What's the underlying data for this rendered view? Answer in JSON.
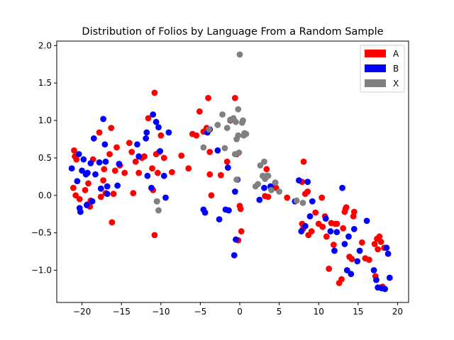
{
  "chart_data": {
    "type": "scatter",
    "title": "Distribution of Folios by Language From a Random Sample",
    "xlabel": "",
    "ylabel": "",
    "xlim": [
      -23.2,
      21.4
    ],
    "ylim": [
      -1.43,
      2.06
    ],
    "xticks": [
      -20,
      -15,
      -10,
      -5,
      0,
      5,
      10,
      15,
      20
    ],
    "xtick_labels": [
      "−20",
      "−15",
      "−10",
      "−5",
      "0",
      "5",
      "10",
      "15",
      "20"
    ],
    "yticks": [
      -1.0,
      -0.5,
      0.0,
      0.5,
      1.0,
      1.5,
      2.0
    ],
    "ytick_labels": [
      "−1.0",
      "−0.5",
      "0.0",
      "0.5",
      "1.0",
      "1.5",
      "2.0"
    ],
    "grid": false,
    "legend": {
      "position": "top-right",
      "entries": [
        "A",
        "B",
        "X"
      ]
    },
    "series": [
      {
        "name": "A",
        "color": "#ff0000",
        "points": [
          [
            -21,
            0.6
          ],
          [
            -20.9,
            0.52
          ],
          [
            -21.1,
            0.1
          ],
          [
            -20.8,
            0.0
          ],
          [
            -20.3,
            -0.05
          ],
          [
            -19.6,
            0.07
          ],
          [
            -19.3,
            -0.12
          ],
          [
            -19.0,
            -0.15
          ],
          [
            -19.2,
            0.16
          ],
          [
            -18.6,
            0.48
          ],
          [
            -18.9,
            -0.07
          ],
          [
            -17.8,
            0.84
          ],
          [
            -17.6,
            -0.02
          ],
          [
            -17.3,
            0.2
          ],
          [
            -17.0,
            0.03
          ],
          [
            -16.5,
            0.55
          ],
          [
            -16.3,
            0.9
          ],
          [
            -16.0,
            0.02
          ],
          [
            -15.8,
            0.33
          ],
          [
            -15.6,
            0.64
          ],
          [
            -15.2,
            0.4
          ],
          [
            -14.6,
            0.3
          ],
          [
            -14.0,
            0.7
          ],
          [
            -13.7,
            0.58
          ],
          [
            -13.5,
            0.03
          ],
          [
            -13.2,
            0.45
          ],
          [
            -12.8,
            0.3
          ],
          [
            -12.4,
            0.5
          ],
          [
            -12.1,
            0.52
          ],
          [
            -11.6,
            1.03
          ],
          [
            -11.1,
            0.36
          ],
          [
            -11.0,
            0.07
          ],
          [
            -10.8,
            1.37
          ],
          [
            -10.6,
            0.55
          ],
          [
            -10.4,
            0.3
          ],
          [
            -10.2,
            0.58
          ],
          [
            -10.0,
            0.8
          ],
          [
            -9.6,
            0.5
          ],
          [
            -8.6,
            0.31
          ],
          [
            -7.4,
            0.53
          ],
          [
            -6.5,
            0.36
          ],
          [
            -6.0,
            0.82
          ],
          [
            -5.5,
            0.8
          ],
          [
            -5.1,
            1.12
          ],
          [
            -4.6,
            0.85
          ],
          [
            -4.2,
            0.9
          ],
          [
            -4.0,
            1.3
          ],
          [
            -3.8,
            0.58
          ],
          [
            -3.6,
            0.0
          ],
          [
            -3.8,
            0.28
          ],
          [
            -2.4,
            0.27
          ],
          [
            -1.6,
            0.45
          ],
          [
            -1.2,
            1.0
          ],
          [
            -0.6,
            1.3
          ],
          [
            -0.4,
            0.55
          ],
          [
            -0.2,
            -0.6
          ],
          [
            0.2,
            -0.48
          ],
          [
            0.0,
            -0.14
          ],
          [
            0.1,
            -0.18
          ],
          [
            -10.8,
            -0.53
          ],
          [
            -16.2,
            -0.36
          ],
          [
            -20.7,
            0.48
          ],
          [
            -17.2,
            0.35
          ],
          [
            3.4,
            0.35
          ],
          [
            3.6,
            -0.02
          ],
          [
            3.2,
            -0.01
          ],
          [
            4.6,
            0.1
          ],
          [
            6.0,
            -0.03
          ],
          [
            7.9,
            0.18
          ],
          [
            8.1,
            0.45
          ],
          [
            8.3,
            0.02
          ],
          [
            8.6,
            0.05
          ],
          [
            8.0,
            -0.45
          ],
          [
            7.9,
            -0.38
          ],
          [
            8.7,
            -0.53
          ],
          [
            9.1,
            -0.48
          ],
          [
            9.6,
            -0.23
          ],
          [
            10.0,
            -0.38
          ],
          [
            10.4,
            -0.03
          ],
          [
            10.5,
            -0.42
          ],
          [
            10.8,
            -0.28
          ],
          [
            11.0,
            -0.55
          ],
          [
            11.3,
            -0.98
          ],
          [
            11.6,
            -0.37
          ],
          [
            11.9,
            -0.66
          ],
          [
            12.3,
            -0.38
          ],
          [
            12.6,
            -1.17
          ],
          [
            12.9,
            -1.12
          ],
          [
            13.1,
            -0.44
          ],
          [
            13.3,
            -0.22
          ],
          [
            13.5,
            -0.16
          ],
          [
            13.9,
            -0.82
          ],
          [
            14.2,
            -0.85
          ],
          [
            14.4,
            -0.28
          ],
          [
            14.5,
            -0.22
          ],
          [
            15.5,
            -0.63
          ],
          [
            15.9,
            -0.84
          ],
          [
            16.4,
            -0.86
          ],
          [
            17.1,
            -0.65
          ],
          [
            17.2,
            -1.08
          ],
          [
            17.4,
            -0.58
          ],
          [
            17.5,
            -0.72
          ],
          [
            17.7,
            -0.55
          ],
          [
            17.9,
            -0.62
          ],
          [
            18.1,
            -1.22
          ],
          [
            18.3,
            -0.7
          ],
          [
            17.8,
            -1.23
          ],
          [
            13.4,
            -0.18
          ],
          [
            12.1,
            -0.38
          ]
        ]
      },
      {
        "name": "B",
        "color": "#0000ff",
        "points": [
          [
            -21.3,
            0.36
          ],
          [
            -20.6,
            0.19
          ],
          [
            -20.4,
            0.55
          ],
          [
            -20.2,
            -0.22
          ],
          [
            -20.3,
            -0.17
          ],
          [
            -20.0,
            0.33
          ],
          [
            -19.8,
            0.48
          ],
          [
            -19.5,
            0.28
          ],
          [
            -19.3,
            0.3
          ],
          [
            -18.9,
            0.43
          ],
          [
            -18.5,
            0.76
          ],
          [
            -18.3,
            0.28
          ],
          [
            -17.8,
            0.44
          ],
          [
            -17.6,
            0.09
          ],
          [
            -17.3,
            1.02
          ],
          [
            -17.0,
            0.45
          ],
          [
            -17.1,
            0.68
          ],
          [
            -16.8,
            0.12
          ],
          [
            -15.3,
            0.42
          ],
          [
            -15.5,
            0.13
          ],
          [
            -13.0,
            0.68
          ],
          [
            -12.8,
            0.52
          ],
          [
            -11.9,
            0.76
          ],
          [
            -11.7,
            0.26
          ],
          [
            -11.2,
            0.1
          ],
          [
            -11.0,
            1.08
          ],
          [
            -10.6,
            0.98
          ],
          [
            -10.3,
            0.91
          ],
          [
            -10.1,
            0.59
          ],
          [
            -9.6,
            0.26
          ],
          [
            -9.4,
            -0.03
          ],
          [
            -9.0,
            0.84
          ],
          [
            -10.5,
            -0.08
          ],
          [
            -19.4,
            -0.13
          ],
          [
            -18.7,
            -0.08
          ],
          [
            -11.8,
            0.84
          ],
          [
            -16.8,
            0.02
          ],
          [
            -4.6,
            -0.19
          ],
          [
            -4.4,
            -0.23
          ],
          [
            -3.8,
            0.88
          ],
          [
            -2.6,
            -0.32
          ],
          [
            -1.8,
            -0.19
          ],
          [
            -1.4,
            -0.2
          ],
          [
            -1.5,
            0.37
          ],
          [
            -0.6,
            0.05
          ],
          [
            -0.7,
            -0.8
          ],
          [
            -0.5,
            -0.59
          ],
          [
            -0.3,
            0.21
          ],
          [
            2.5,
            -0.06
          ],
          [
            4.0,
            0.08
          ],
          [
            4.5,
            0.17
          ],
          [
            7.0,
            -0.08
          ],
          [
            7.5,
            0.2
          ],
          [
            7.8,
            -0.48
          ],
          [
            8.3,
            -0.41
          ],
          [
            8.6,
            0.18
          ],
          [
            8.9,
            -0.28
          ],
          [
            9.2,
            -0.08
          ],
          [
            10.9,
            -0.31
          ],
          [
            11.5,
            -0.48
          ],
          [
            12.0,
            -0.74
          ],
          [
            12.3,
            -0.49
          ],
          [
            13.0,
            0.1
          ],
          [
            13.3,
            -0.65
          ],
          [
            13.6,
            -1.0
          ],
          [
            13.8,
            -0.55
          ],
          [
            14.1,
            -1.05
          ],
          [
            14.5,
            -0.45
          ],
          [
            14.9,
            -0.88
          ],
          [
            16.1,
            -0.34
          ],
          [
            17.0,
            -1.0
          ],
          [
            17.3,
            -1.13
          ],
          [
            17.5,
            -1.23
          ],
          [
            18.0,
            -1.24
          ],
          [
            18.4,
            -1.25
          ],
          [
            18.6,
            -0.7
          ],
          [
            18.8,
            -0.78
          ],
          [
            19.0,
            -1.1
          ],
          [
            15.2,
            -0.74
          ],
          [
            -2.8,
            0.6
          ],
          [
            3.1,
            0.1
          ],
          [
            3.9,
            0.12
          ],
          [
            -4.1,
            0.84
          ]
        ]
      },
      {
        "name": "X",
        "color": "#808080",
        "points": [
          [
            -10.3,
            -0.2
          ],
          [
            -10.5,
            -0.08
          ],
          [
            -4.6,
            0.64
          ],
          [
            -3.9,
            0.88
          ],
          [
            -2.8,
            0.94
          ],
          [
            -2.2,
            1.08
          ],
          [
            -1.9,
            0.63
          ],
          [
            -1.6,
            0.9
          ],
          [
            -1.2,
            1.01
          ],
          [
            -0.8,
            1.03
          ],
          [
            -0.5,
            0.98
          ],
          [
            -0.4,
            0.75
          ],
          [
            -0.2,
            1.15
          ],
          [
            -0.6,
            0.55
          ],
          [
            -0.1,
            0.57
          ],
          [
            0.0,
            1.88
          ],
          [
            0.3,
            0.97
          ],
          [
            0.4,
            1.0
          ],
          [
            0.5,
            0.8
          ],
          [
            0.6,
            0.83
          ],
          [
            -0.4,
            0.21
          ],
          [
            2.0,
            0.12
          ],
          [
            2.3,
            0.15
          ],
          [
            2.6,
            0.4
          ],
          [
            2.9,
            0.26
          ],
          [
            3.1,
            0.45
          ],
          [
            3.4,
            0.26
          ],
          [
            3.6,
            0.26
          ],
          [
            4.0,
            0.07
          ],
          [
            4.5,
            0.17
          ],
          [
            5.0,
            0.05
          ],
          [
            7.2,
            -0.07
          ],
          [
            8.0,
            -0.1
          ],
          [
            0.8,
            0.82
          ],
          [
            -0.2,
            0.8
          ],
          [
            3.2,
            0.22
          ]
        ]
      }
    ]
  }
}
